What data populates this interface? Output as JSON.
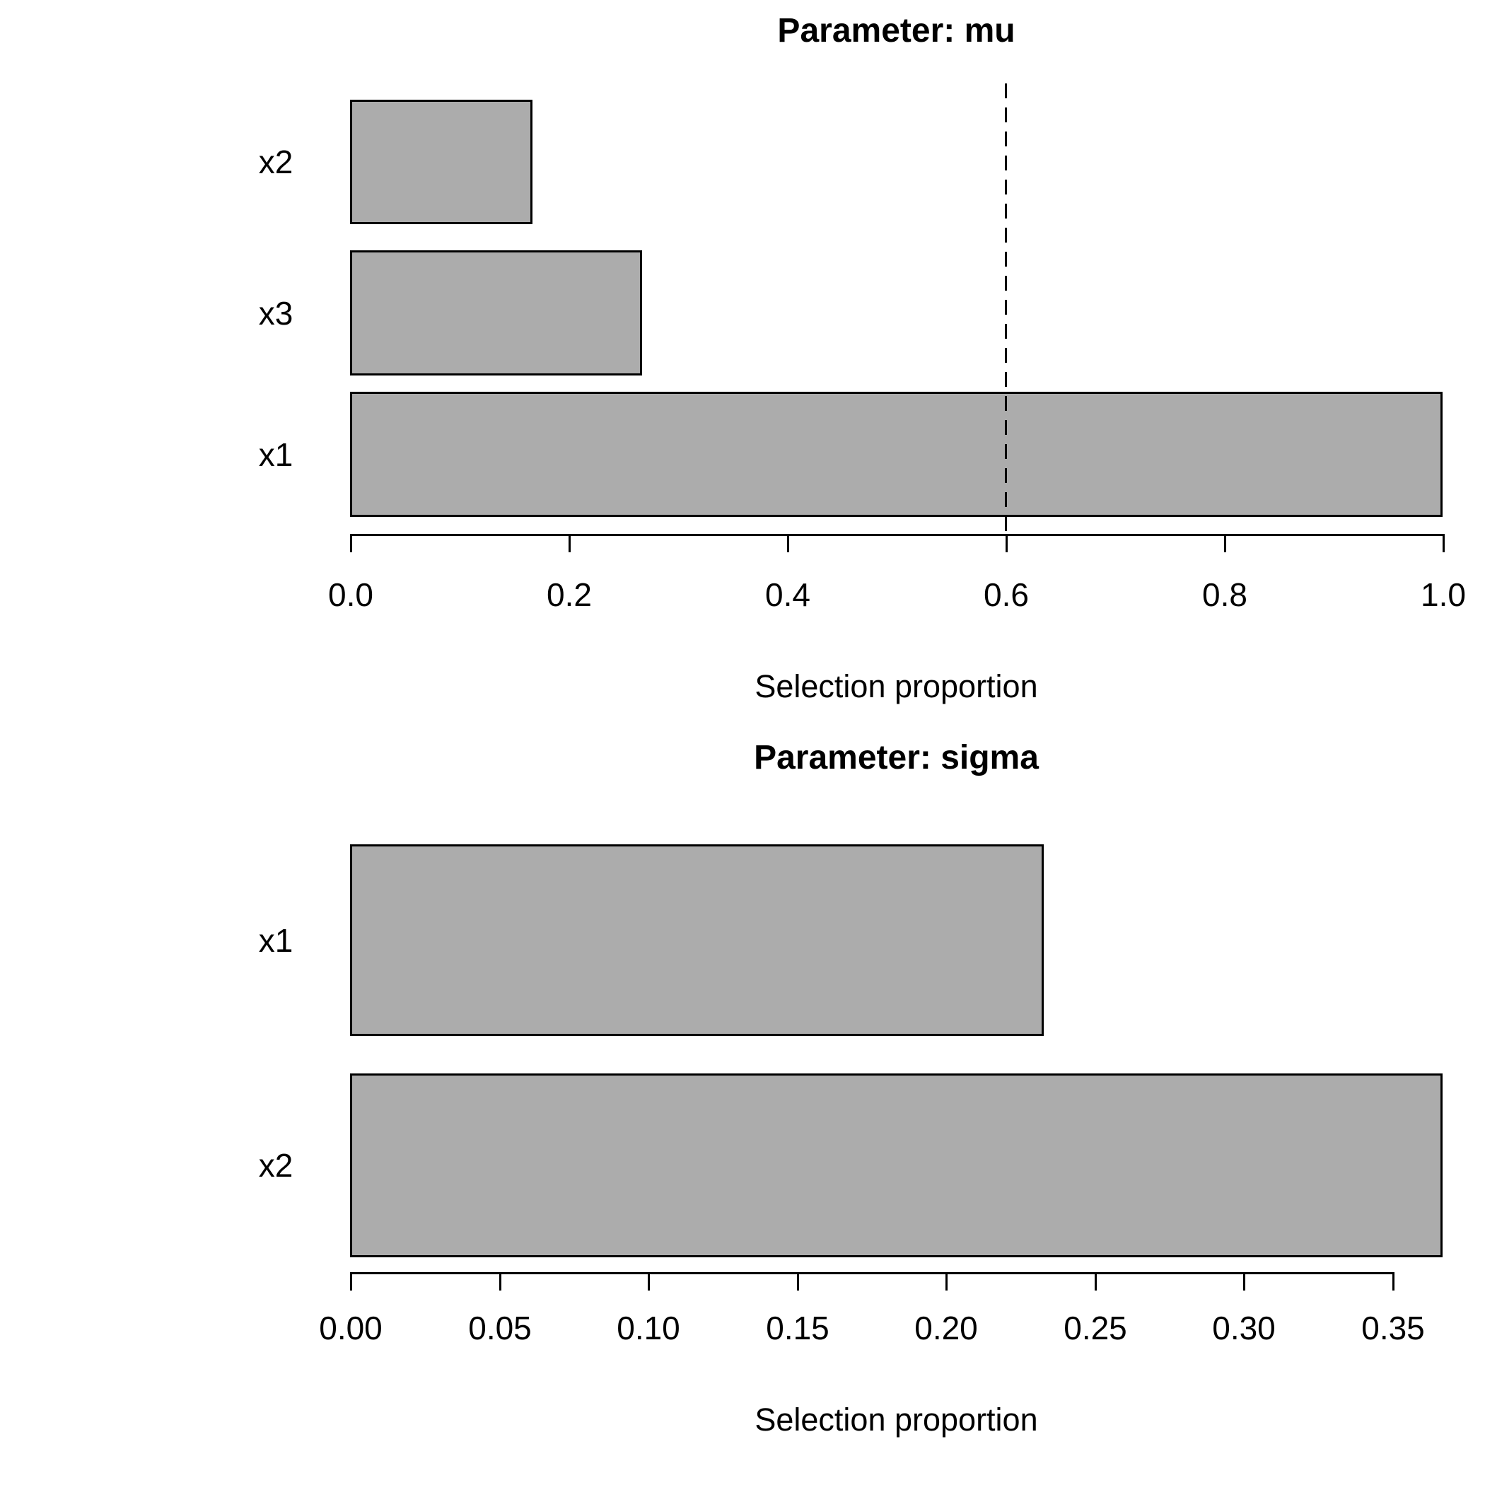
{
  "chart_data": [
    {
      "type": "bar",
      "orientation": "horizontal",
      "title": "Parameter: mu",
      "xlabel": "Selection proportion",
      "categories": [
        "x2",
        "x3",
        "x1"
      ],
      "values": [
        0.167,
        0.267,
        1.0
      ],
      "xlim": [
        0.0,
        1.0
      ],
      "xticks": [
        0.0,
        0.2,
        0.4,
        0.6,
        0.8,
        1.0
      ],
      "xtick_labels": [
        "0.0",
        "0.2",
        "0.4",
        "0.6",
        "0.8",
        "1.0"
      ],
      "threshold_line_x": 0.6,
      "bar_fill_color": "#ACACAC",
      "bar_border_color": "#000000",
      "grid": false,
      "legend": false
    },
    {
      "type": "bar",
      "orientation": "horizontal",
      "title": "Parameter: sigma",
      "xlabel": "Selection proportion",
      "categories": [
        "x1",
        "x2"
      ],
      "values": [
        0.233,
        0.367
      ],
      "xlim": [
        0.0,
        0.367
      ],
      "xticks": [
        0.0,
        0.05,
        0.1,
        0.15,
        0.2,
        0.25,
        0.3,
        0.35
      ],
      "xtick_labels": [
        "0.00",
        "0.05",
        "0.10",
        "0.15",
        "0.20",
        "0.25",
        "0.30",
        "0.35"
      ],
      "threshold_line_x": null,
      "bar_fill_color": "#ACACAC",
      "bar_border_color": "#000000",
      "grid": false,
      "legend": false
    }
  ]
}
